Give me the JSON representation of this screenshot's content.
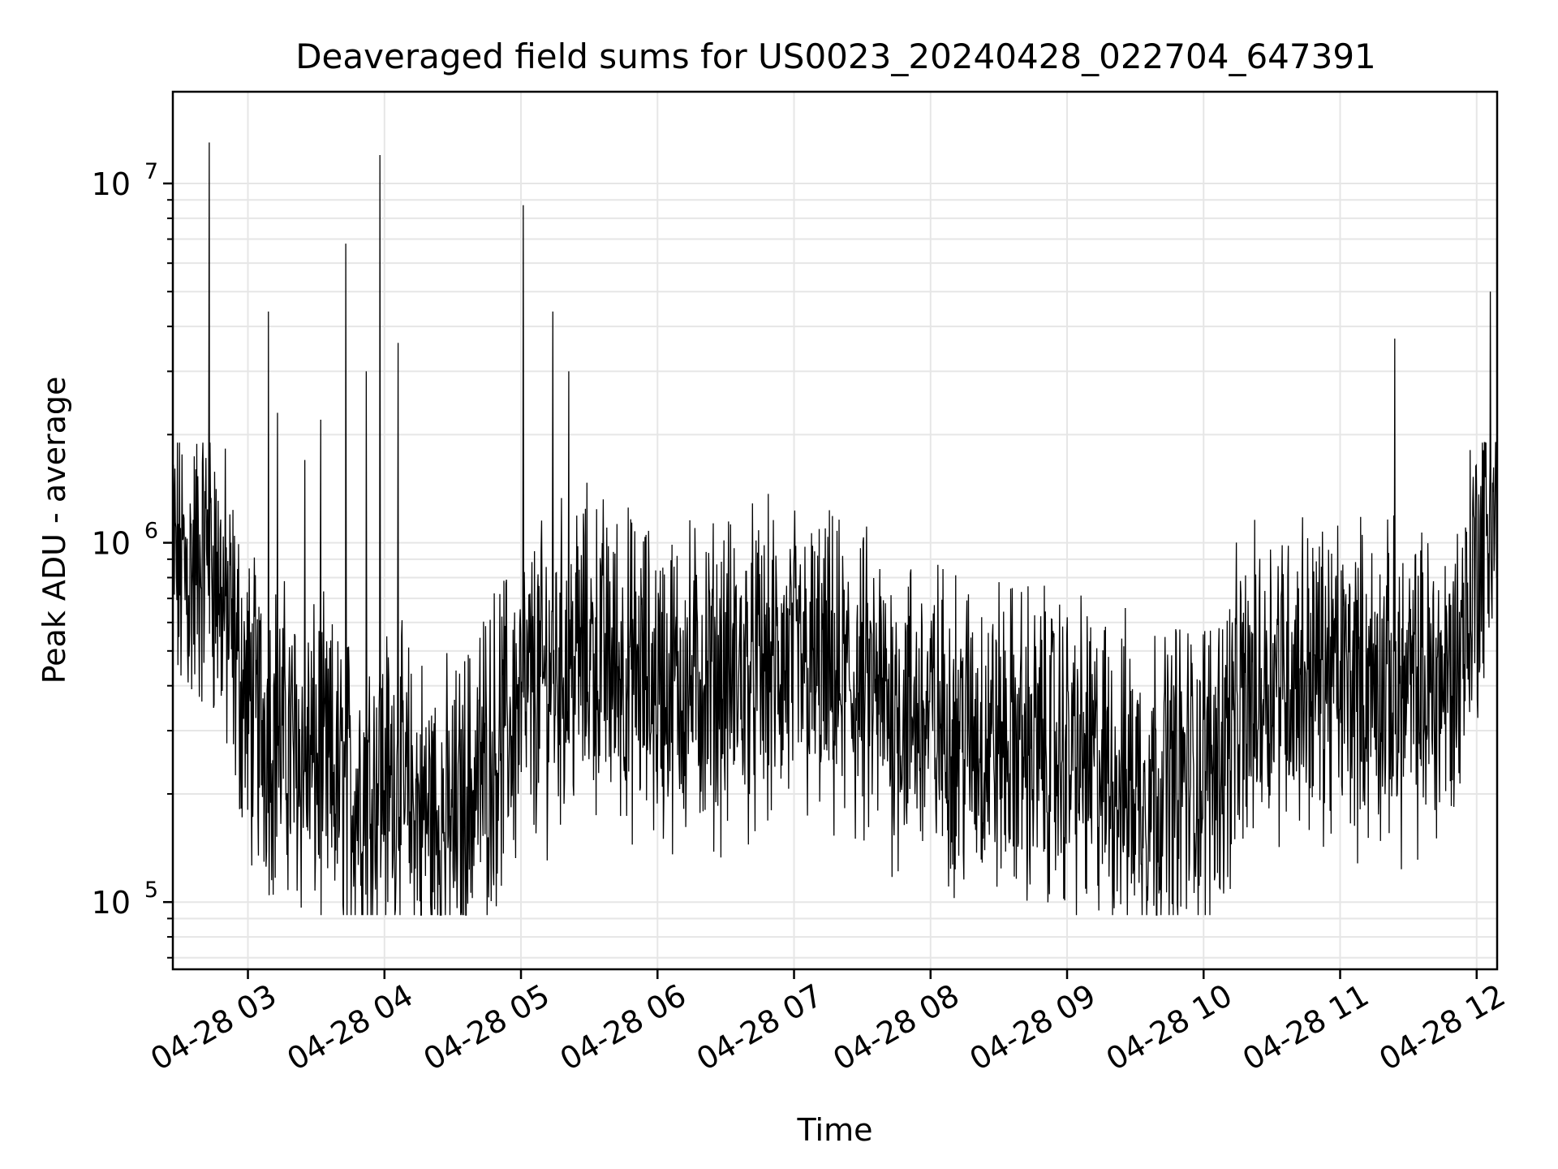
{
  "chart_data": {
    "type": "line",
    "title": "Deaveraged field sums for US0023_20240428_022704_647391",
    "xlabel": "Time",
    "ylabel": "Peak ADU - average",
    "yscale": "log",
    "ylim": [
      65000,
      18000000
    ],
    "xlim": [
      "2024-04-28 02:27",
      "2024-04-28 12:09"
    ],
    "x_tick_labels": [
      "04-28 03",
      "04-28 04",
      "04-28 05",
      "04-28 06",
      "04-28 07",
      "04-28 08",
      "04-28 09",
      "04-28 10",
      "04-28 11",
      "04-28 12"
    ],
    "y_tick_labels": [
      {
        "base": "10",
        "exp": "5"
      },
      {
        "base": "10",
        "exp": "6"
      },
      {
        "base": "10",
        "exp": "7"
      }
    ],
    "grid": true,
    "line_color": "#000000",
    "series": [
      {
        "x": [
          "2024-04-28 02:27",
          "2024-04-28 02:35",
          "2024-04-28 02:43",
          "2024-04-28 02:50",
          "2024-04-28 03:00",
          "2024-04-28 03:15",
          "2024-04-28 03:30",
          "2024-04-28 03:45",
          "2024-04-28 04:00",
          "2024-04-28 04:15",
          "2024-04-28 04:30",
          "2024-04-28 04:45",
          "2024-04-28 05:00",
          "2024-04-28 05:15",
          "2024-04-28 05:30",
          "2024-04-28 06:00",
          "2024-04-28 06:30",
          "2024-04-28 07:00",
          "2024-04-28 07:30",
          "2024-04-28 08:00",
          "2024-04-28 08:30",
          "2024-04-28 09:00",
          "2024-04-28 09:30",
          "2024-04-28 10:00",
          "2024-04-28 10:30",
          "2024-04-28 11:00",
          "2024-04-28 11:30",
          "2024-04-28 11:50",
          "2024-04-28 12:00",
          "2024-04-28 12:09"
        ],
        "y": [
          900000,
          800000,
          1000000,
          650000,
          350000,
          280000,
          240000,
          200000,
          220000,
          180000,
          160000,
          250000,
          350000,
          450000,
          500000,
          400000,
          420000,
          450000,
          380000,
          320000,
          280000,
          260000,
          210000,
          230000,
          450000,
          420000,
          380000,
          420000,
          900000,
          1300000
        ]
      }
    ],
    "spikes": [
      {
        "x": "2024-04-28 02:43",
        "y": 13000000
      },
      {
        "x": "2024-04-28 03:09",
        "y": 4400000
      },
      {
        "x": "2024-04-28 03:13",
        "y": 2300000
      },
      {
        "x": "2024-04-28 03:25",
        "y": 1700000
      },
      {
        "x": "2024-04-28 03:32",
        "y": 2200000
      },
      {
        "x": "2024-04-28 03:43",
        "y": 6800000
      },
      {
        "x": "2024-04-28 03:52",
        "y": 3000000
      },
      {
        "x": "2024-04-28 03:58",
        "y": 12000000
      },
      {
        "x": "2024-04-28 04:06",
        "y": 3600000
      },
      {
        "x": "2024-04-28 05:01",
        "y": 8700000
      },
      {
        "x": "2024-04-28 05:14",
        "y": 4400000
      },
      {
        "x": "2024-04-28 05:21",
        "y": 3000000
      },
      {
        "x": "2024-04-28 11:24",
        "y": 3700000
      },
      {
        "x": "2024-04-28 12:06",
        "y": 5000000
      }
    ]
  }
}
